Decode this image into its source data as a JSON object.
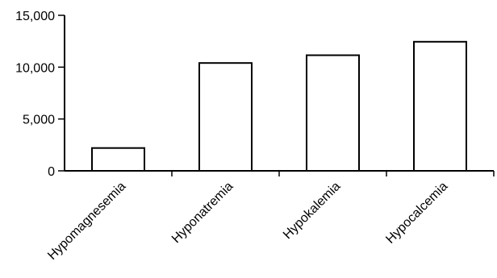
{
  "chart_data": {
    "type": "bar",
    "categories": [
      "Hypomagnesemia",
      "Hyponatremia",
      "Hypokalemia",
      "Hypocalcemia"
    ],
    "values": [
      2200,
      10400,
      11150,
      12450
    ],
    "ylim": [
      0,
      15000
    ],
    "yticks": [
      "0",
      "5,000",
      "10,000",
      "15,000"
    ],
    "grid": false,
    "bar_fill": "#ffffff",
    "bar_stroke": "#000000"
  }
}
